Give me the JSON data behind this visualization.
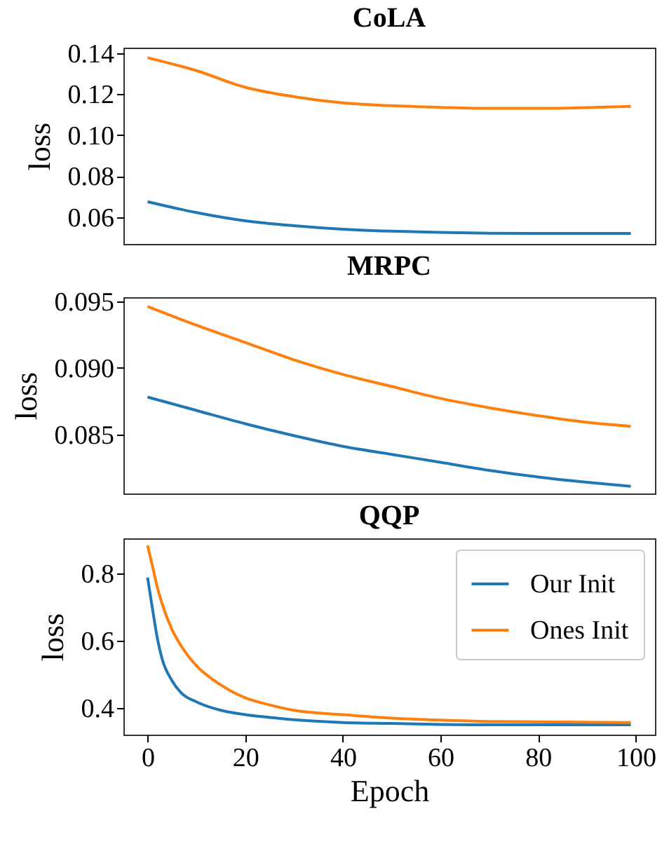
{
  "chart_data": [
    {
      "type": "line",
      "title": "CoLA",
      "ylabel": "loss",
      "xlim": [
        -4.95,
        103.95
      ],
      "xticks": [
        0,
        20,
        40,
        60,
        80,
        100
      ],
      "ylim": [
        0.0469,
        0.1426
      ],
      "yticks": [
        0.06,
        0.08,
        {
          "value": 0.1,
          "label": "0.10"
        },
        0.12,
        0.14
      ],
      "tick_labels": "y",
      "grid": false,
      "legend": false,
      "x": [
        0,
        10,
        20,
        30,
        40,
        50,
        60,
        70,
        80,
        90,
        99
      ],
      "series": [
        {
          "color": "#1f77b4",
          "values": [
            0.0675,
            0.0622,
            0.0582,
            0.0558,
            0.0541,
            0.0531,
            0.0525,
            0.0521,
            0.052,
            0.052,
            0.052
          ]
        },
        {
          "color": "#ff7f0e",
          "values": [
            0.1377,
            0.1314,
            0.1233,
            0.1187,
            0.1157,
            0.1143,
            0.1135,
            0.113,
            0.113,
            0.1134,
            0.114
          ]
        }
      ]
    },
    {
      "type": "line",
      "title": "MRPC",
      "ylabel": "loss",
      "xlim": [
        -4.95,
        103.95
      ],
      "xticks": [
        0,
        20,
        40,
        60,
        80,
        100
      ],
      "ylim": [
        0.08056,
        0.0953
      ],
      "yticks": [
        {
          "value": 0.085,
          "label": "0.085"
        },
        {
          "value": 0.09,
          "label": "0.090"
        },
        {
          "value": 0.095,
          "label": "0.095"
        }
      ],
      "tick_labels": "y",
      "grid": false,
      "legend": false,
      "x": [
        0,
        10,
        20,
        30,
        40,
        50,
        60,
        70,
        80,
        90,
        99
      ],
      "series": [
        {
          "color": "#1f77b4",
          "values": [
            0.0878,
            0.0868,
            0.0858,
            0.0849,
            0.0841,
            0.0835,
            0.0829,
            0.0823,
            0.0818,
            0.0814,
            0.0811
          ]
        },
        {
          "color": "#ff7f0e",
          "values": [
            0.0946,
            0.0932,
            0.0919,
            0.0906,
            0.0895,
            0.0886,
            0.0877,
            0.087,
            0.0864,
            0.0859,
            0.0856
          ]
        }
      ]
    },
    {
      "type": "line",
      "title": "QQP",
      "xlabel": "Epoch",
      "ylabel": "loss",
      "xlim": [
        -4.95,
        103.95
      ],
      "xticks": [
        0,
        20,
        40,
        60,
        80,
        100
      ],
      "ylim": [
        0.322,
        0.903
      ],
      "yticks": [
        0.4,
        0.6,
        0.8
      ],
      "grid": false,
      "legend": "top right",
      "x": [
        0,
        1,
        2,
        3,
        5,
        7,
        10,
        15,
        20,
        25,
        30,
        40,
        50,
        60,
        70,
        80,
        99
      ],
      "series": [
        {
          "name": "Our Init",
          "color": "#1f77b4",
          "values": [
            0.787,
            0.695,
            0.607,
            0.545,
            0.482,
            0.444,
            0.419,
            0.394,
            0.381,
            0.373,
            0.366,
            0.358,
            0.355,
            0.352,
            0.351,
            0.351,
            0.351
          ]
        },
        {
          "name": "Ones Init",
          "color": "#ff7f0e",
          "values": [
            0.882,
            0.821,
            0.758,
            0.708,
            0.633,
            0.582,
            0.526,
            0.469,
            0.431,
            0.41,
            0.394,
            0.381,
            0.371,
            0.365,
            0.361,
            0.36,
            0.358
          ]
        }
      ]
    }
  ]
}
